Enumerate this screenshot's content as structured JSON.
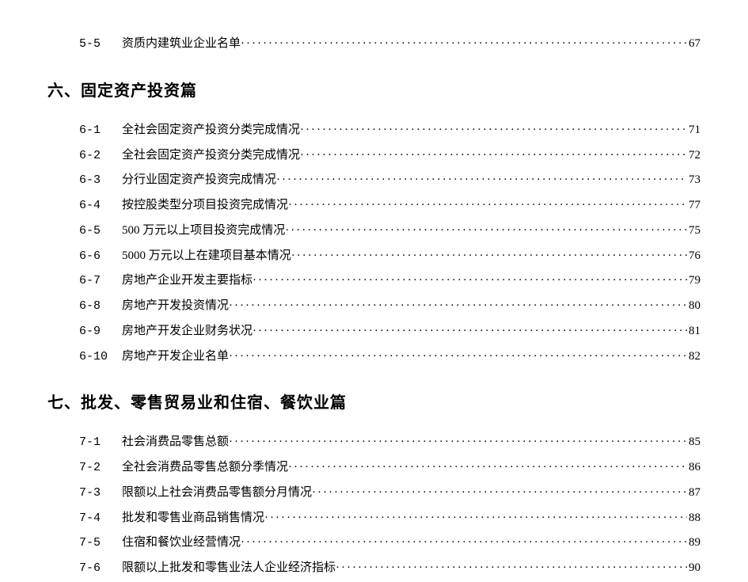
{
  "pre_entries": [
    {
      "num": "5-5",
      "title": "资质内建筑业企业名单",
      "page": "67"
    }
  ],
  "sections": [
    {
      "heading": "六、固定资产投资篇",
      "entries": [
        {
          "num": "6-1",
          "title": "全社会固定资产投资分类完成情况",
          "page": "71"
        },
        {
          "num": "6-2",
          "title": "全社会固定资产投资分类完成情况",
          "page": "72"
        },
        {
          "num": "6-3",
          "title": "分行业固定资产投资完成情况",
          "page": "73"
        },
        {
          "num": "6-4",
          "title": "按控股类型分项目投资完成情况",
          "page": "77"
        },
        {
          "num": "6-5",
          "title": "500 万元以上项目投资完成情况",
          "page": "75"
        },
        {
          "num": "6-6",
          "title": "5000 万元以上在建项目基本情况",
          "page": "76"
        },
        {
          "num": "6-7",
          "title": "房地产企业开发主要指标",
          "page": "79"
        },
        {
          "num": "6-8",
          "title": "房地产开发投资情况",
          "page": "80"
        },
        {
          "num": "6-9",
          "title": "房地产开发企业财务状况",
          "page": "81"
        },
        {
          "num": "6-10",
          "title": "房地产开发企业名单",
          "page": "82"
        }
      ]
    },
    {
      "heading": "七、批发、零售贸易业和住宿、餐饮业篇",
      "entries": [
        {
          "num": "7-1",
          "title": "社会消费品零售总额",
          "page": "85"
        },
        {
          "num": "7-2",
          "title": "全社会消费品零售总额分季情况",
          "page": "86"
        },
        {
          "num": "7-3",
          "title": "限额以上社会消费品零售额分月情况",
          "page": "87"
        },
        {
          "num": "7-4",
          "title": "批发和零售业商品销售情况",
          "page": "88"
        },
        {
          "num": "7-5",
          "title": "住宿和餐饮业经营情况",
          "page": "89"
        },
        {
          "num": "7-6",
          "title": "限额以上批发和零售业法人企业经济指标",
          "page": "90"
        }
      ]
    }
  ]
}
